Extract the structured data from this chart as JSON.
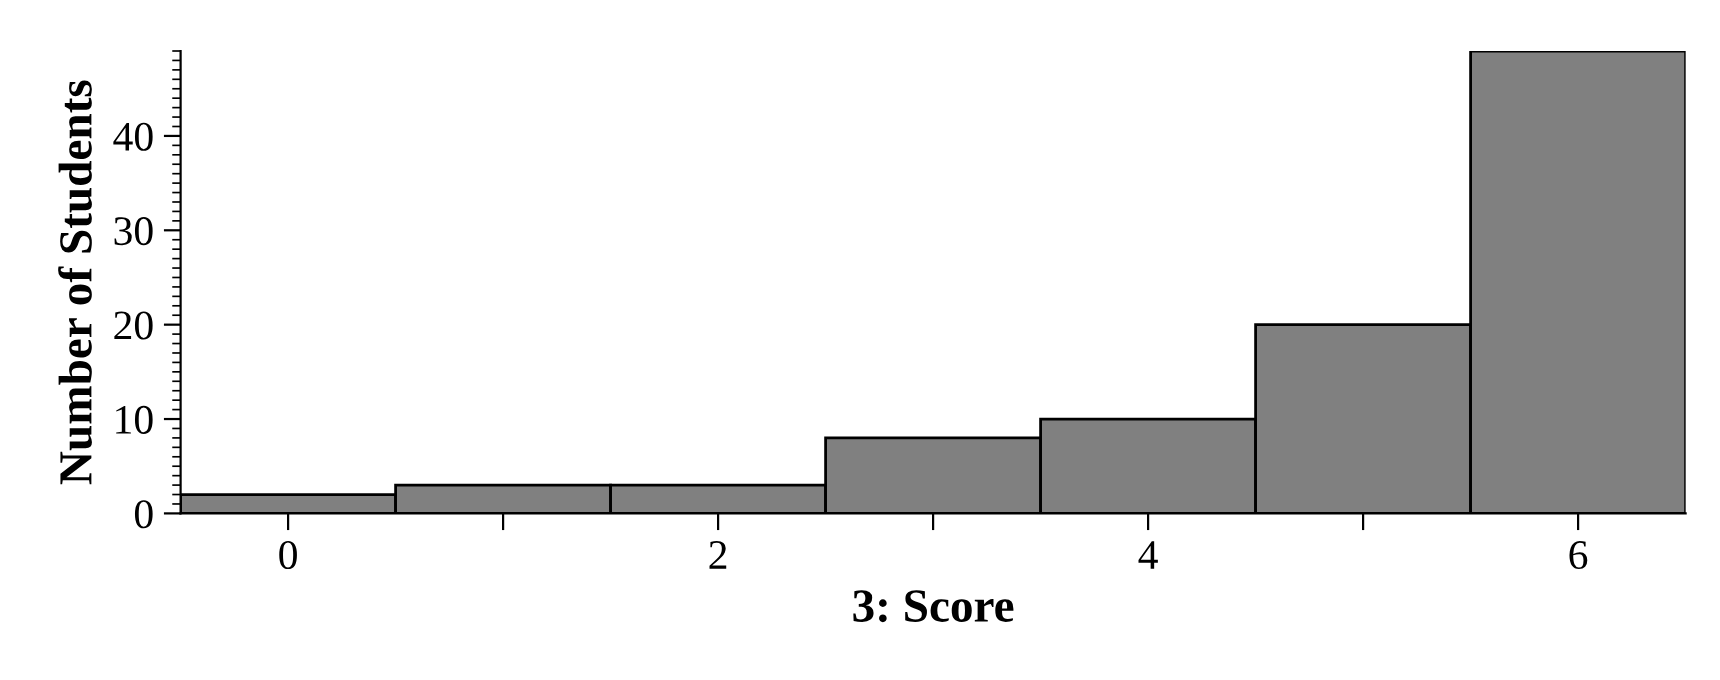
{
  "chart_data": {
    "type": "histogram",
    "xlabel": "3: Score",
    "ylabel": "Number of Students",
    "bins": [
      -0.5,
      0.5,
      1.5,
      2.5,
      3.5,
      4.5,
      5.5,
      6.5
    ],
    "values": [
      2,
      3,
      3,
      8,
      10,
      20,
      49
    ],
    "color": "#808080",
    "xlim": [
      -0.5,
      6.5
    ],
    "ylim": [
      0,
      49
    ],
    "xticks": [
      0,
      {
        "value": 1,
        "label": null
      },
      2,
      {
        "value": 3,
        "label": null
      },
      4,
      {
        "value": 5,
        "label": null
      },
      6
    ],
    "yticks": [
      0,
      10,
      20,
      30,
      40
    ],
    "grid": false,
    "legend": false
  }
}
